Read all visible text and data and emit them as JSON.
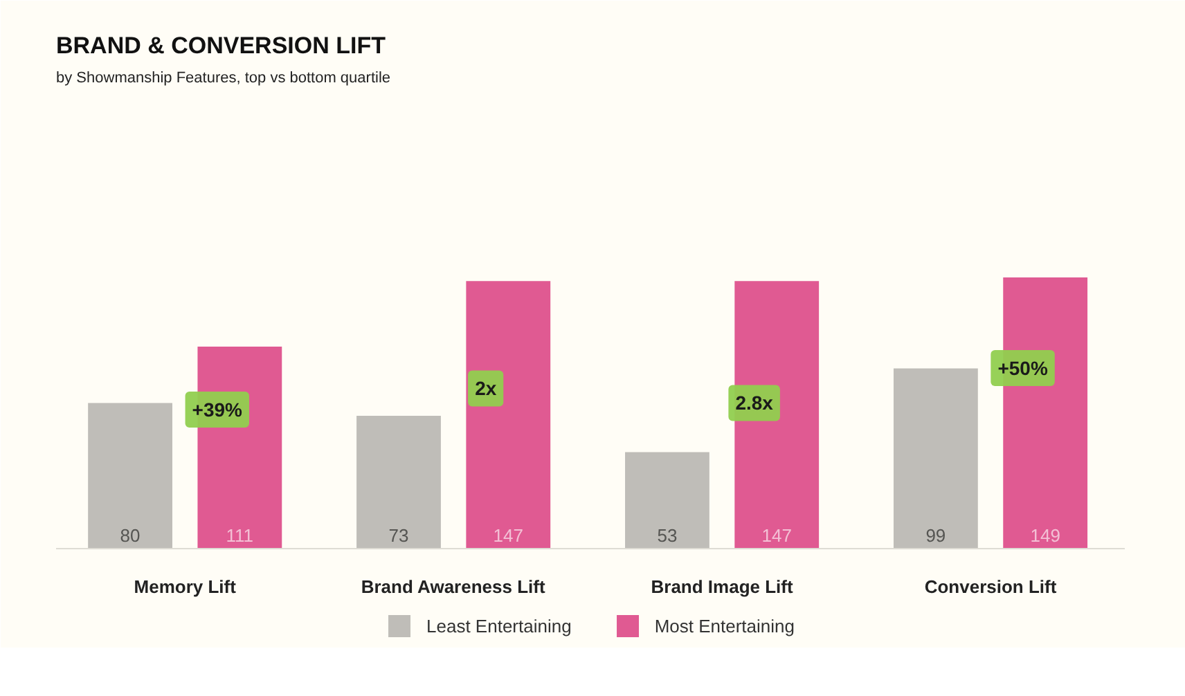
{
  "chart_data": {
    "type": "bar",
    "title": "BRAND & CONVERSION LIFT",
    "subtitle": "by Showmanship Features, top vs bottom quartile",
    "categories": [
      "Memory Lift",
      "Brand Awareness Lift",
      "Brand Image Lift",
      "Conversion Lift"
    ],
    "series": [
      {
        "name": "Least Entertaining",
        "color": "#bfbdb8",
        "values": [
          80,
          73,
          53,
          99
        ]
      },
      {
        "name": "Most Entertaining",
        "color": "#e05a92",
        "values": [
          111,
          147,
          147,
          149
        ]
      }
    ],
    "data_labels": true,
    "legend": "bottom",
    "annotations": [
      "+39%",
      "2x",
      "2.8x",
      "+50%"
    ]
  }
}
